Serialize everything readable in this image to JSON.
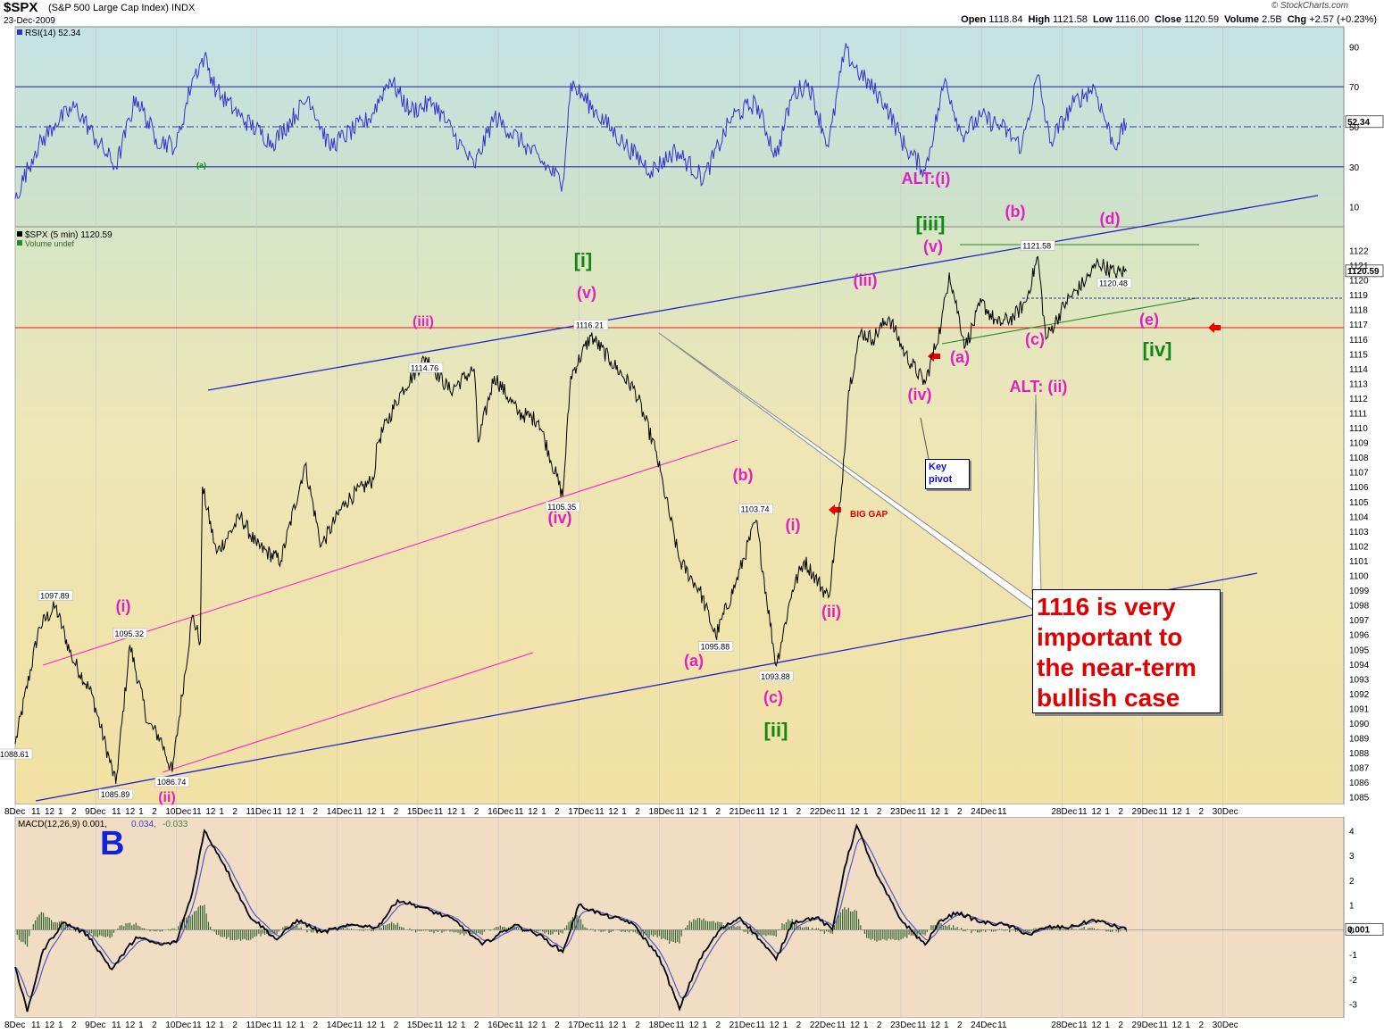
{
  "header": {
    "symbol": "$SPX",
    "name": "(S&P 500 Large Cap Index)",
    "exchange": "INDX",
    "date": "23-Dec-2009",
    "brand": "© StockCharts.com",
    "ohlc": [
      {
        "label": "Open",
        "value": "1118.84"
      },
      {
        "label": "High",
        "value": "1121.58"
      },
      {
        "label": "Low",
        "value": "1116.00"
      },
      {
        "label": "Close",
        "value": "1120.59"
      },
      {
        "label": "Volume",
        "value": "2.5B"
      },
      {
        "label": "Chg",
        "value": "+2.57 (+0.23%)"
      }
    ]
  },
  "rsi_panel": {
    "label": "RSI(14) 52.34",
    "current": "52.34",
    "ticks": [
      90,
      70,
      50,
      30,
      10
    ],
    "marker": "(a)"
  },
  "price_panel": {
    "label": "$SPX (5 min) 1120.59",
    "volume_label": "Volume undef",
    "current": "1120.59",
    "price_range": [
      1084.5,
      1123.6
    ],
    "ticks": [
      1085,
      1086,
      1087,
      1088,
      1089,
      1090,
      1091,
      1092,
      1093,
      1094,
      1095,
      1096,
      1097,
      1098,
      1099,
      1100,
      1101,
      1102,
      1103,
      1104,
      1105,
      1106,
      1107,
      1108,
      1109,
      1110,
      1111,
      1112,
      1113,
      1114,
      1115,
      1116,
      1117,
      1118,
      1119,
      1120,
      1121,
      1122
    ]
  },
  "macd_panel": {
    "label": "MACD(12,26,9) 0.001, 0.034, -0.033",
    "value_a": "MACD(12,26,9) 0.001,",
    "value_b": "0.034,",
    "value_c": "-0.033",
    "current": "0.001",
    "ticks": [
      4,
      3,
      2,
      1,
      0,
      -1,
      -2,
      -3
    ]
  },
  "x_axis": {
    "days": [
      {
        "label": "8Dec",
        "hours": [
          "11",
          "12",
          "1",
          "2"
        ]
      },
      {
        "label": "9Dec",
        "hours": [
          "11",
          "12",
          "1",
          "2"
        ]
      },
      {
        "label": "10Dec",
        "hours": [
          "11",
          "12",
          "1",
          "2"
        ]
      },
      {
        "label": "11Dec",
        "hours": [
          "11",
          "12",
          "1",
          "2"
        ]
      },
      {
        "label": "14Dec",
        "hours": [
          "11",
          "12",
          "1",
          "2"
        ]
      },
      {
        "label": "15Dec",
        "hours": [
          "11",
          "12",
          "1",
          "2"
        ]
      },
      {
        "label": "16Dec",
        "hours": [
          "11",
          "12",
          "1",
          "2"
        ]
      },
      {
        "label": "17Dec",
        "hours": [
          "11",
          "12",
          "1",
          "2"
        ]
      },
      {
        "label": "18Dec",
        "hours": [
          "11",
          "12",
          "1",
          "2"
        ]
      },
      {
        "label": "21Dec",
        "hours": [
          "11",
          "12",
          "1",
          "2"
        ]
      },
      {
        "label": "22Dec",
        "hours": [
          "11",
          "12",
          "1",
          "2"
        ]
      },
      {
        "label": "23Dec",
        "hours": [
          "11",
          "12",
          "1",
          "2"
        ]
      },
      {
        "label": "24Dec",
        "hours": [
          "11"
        ]
      },
      {
        "label": "28Dec",
        "hours": [
          "11",
          "12",
          "1",
          "2"
        ]
      },
      {
        "label": "29Dec",
        "hours": [
          "11",
          "12",
          "1",
          "2"
        ]
      },
      {
        "label": "30Dec",
        "hours": []
      }
    ]
  },
  "colors": {
    "price_line": "#000000",
    "rsi_line": "#3333cc",
    "macd_line": "#000000",
    "signal_line": "#5555cc",
    "histogram": "#336633",
    "trend_blue": "#2222cc",
    "trend_magenta": "#ff22cc",
    "trend_green": "#228822",
    "level_red": "#ee1111",
    "wave_magenta": "#e020c0",
    "wave_green": "#118811"
  },
  "chart_data": {
    "type": "line",
    "title": "$SPX (S&P 500 Large Cap Index) 5 min",
    "price_anchors": [
      {
        "x": 0.0,
        "y": 1088.6
      },
      {
        "x": 0.6,
        "y": 1096.5
      },
      {
        "x": 1.0,
        "y": 1097.9
      },
      {
        "x": 1.4,
        "y": 1094.5
      },
      {
        "x": 1.9,
        "y": 1092.0
      },
      {
        "x": 2.5,
        "y": 1085.9
      },
      {
        "x": 2.85,
        "y": 1095.3
      },
      {
        "x": 3.3,
        "y": 1090.0
      },
      {
        "x": 3.6,
        "y": 1089.0
      },
      {
        "x": 3.9,
        "y": 1086.7
      },
      {
        "x": 4.4,
        "y": 1097.3
      },
      {
        "x": 4.6,
        "y": 1095.5
      },
      {
        "x": 4.65,
        "y": 1106.0
      },
      {
        "x": 5.0,
        "y": 1101.5
      },
      {
        "x": 5.6,
        "y": 1104.0
      },
      {
        "x": 6.0,
        "y": 1102.0
      },
      {
        "x": 6.6,
        "y": 1101.0
      },
      {
        "x": 7.2,
        "y": 1107.5
      },
      {
        "x": 7.6,
        "y": 1102.0
      },
      {
        "x": 8.2,
        "y": 1105.0
      },
      {
        "x": 8.9,
        "y": 1106.5
      },
      {
        "x": 9.0,
        "y": 1109.0
      },
      {
        "x": 9.6,
        "y": 1112.5
      },
      {
        "x": 10.2,
        "y": 1114.76
      },
      {
        "x": 10.8,
        "y": 1112.5
      },
      {
        "x": 11.4,
        "y": 1114.0
      },
      {
        "x": 11.5,
        "y": 1109.0
      },
      {
        "x": 11.9,
        "y": 1113.5
      },
      {
        "x": 12.5,
        "y": 1111.0
      },
      {
        "x": 13.0,
        "y": 1110.5
      },
      {
        "x": 13.6,
        "y": 1105.35
      },
      {
        "x": 13.8,
        "y": 1113.5
      },
      {
        "x": 14.3,
        "y": 1116.21
      },
      {
        "x": 14.8,
        "y": 1114.5
      },
      {
        "x": 15.4,
        "y": 1112.5
      },
      {
        "x": 15.9,
        "y": 1108.5
      },
      {
        "x": 16.1,
        "y": 1106.0
      },
      {
        "x": 16.5,
        "y": 1101.0
      },
      {
        "x": 17.0,
        "y": 1099.0
      },
      {
        "x": 17.4,
        "y": 1095.88
      },
      {
        "x": 17.9,
        "y": 1099.5
      },
      {
        "x": 18.4,
        "y": 1103.74
      },
      {
        "x": 18.9,
        "y": 1093.88
      },
      {
        "x": 19.3,
        "y": 1099.0
      },
      {
        "x": 19.6,
        "y": 1101.0
      },
      {
        "x": 20.2,
        "y": 1098.5
      },
      {
        "x": 20.5,
        "y": 1105.0
      },
      {
        "x": 20.7,
        "y": 1112.5
      },
      {
        "x": 21.0,
        "y": 1116.5
      },
      {
        "x": 21.3,
        "y": 1116.0
      },
      {
        "x": 21.7,
        "y": 1117.5
      },
      {
        "x": 22.1,
        "y": 1115.0
      },
      {
        "x": 22.6,
        "y": 1113.0
      },
      {
        "x": 23.0,
        "y": 1117.0
      },
      {
        "x": 23.2,
        "y": 1120.5
      },
      {
        "x": 23.6,
        "y": 1115.5
      },
      {
        "x": 24.0,
        "y": 1118.5
      },
      {
        "x": 24.4,
        "y": 1117.0
      },
      {
        "x": 24.8,
        "y": 1117.5
      },
      {
        "x": 25.1,
        "y": 1118.5
      },
      {
        "x": 25.4,
        "y": 1121.58
      },
      {
        "x": 25.6,
        "y": 1116.0
      },
      {
        "x": 26.1,
        "y": 1118.5
      },
      {
        "x": 26.6,
        "y": 1120.0
      },
      {
        "x": 26.9,
        "y": 1121.2
      },
      {
        "x": 27.3,
        "y": 1120.48
      },
      {
        "x": 27.6,
        "y": 1120.59
      }
    ],
    "x_range": [
      0,
      33
    ],
    "ylim": [
      1084.5,
      1123.6
    ],
    "price_labels": [
      {
        "x": 0.0,
        "y": 1088.61,
        "text": "1088.61"
      },
      {
        "x": 1.0,
        "y": 1097.89,
        "text": "1097.89"
      },
      {
        "x": 2.5,
        "y": 1085.89,
        "text": "1085.89"
      },
      {
        "x": 2.85,
        "y": 1095.32,
        "text": "1095.32"
      },
      {
        "x": 3.9,
        "y": 1086.74,
        "text": "1086.74"
      },
      {
        "x": 10.2,
        "y": 1114.76,
        "text": "1114.76"
      },
      {
        "x": 13.6,
        "y": 1105.35,
        "text": "1105.35"
      },
      {
        "x": 14.3,
        "y": 1116.21,
        "text": "1116.21"
      },
      {
        "x": 17.4,
        "y": 1095.88,
        "text": "1095.88"
      },
      {
        "x": 18.4,
        "y": 1103.74,
        "text": "1103.74"
      },
      {
        "x": 18.9,
        "y": 1093.88,
        "text": "1093.88"
      },
      {
        "x": 25.4,
        "y": 1121.58,
        "text": "1121.58"
      },
      {
        "x": 27.3,
        "y": 1120.48,
        "text": "1120.48"
      }
    ],
    "rsi_anchors": [
      {
        "x": 0,
        "y": 14
      },
      {
        "x": 0.5,
        "y": 38
      },
      {
        "x": 1.0,
        "y": 52
      },
      {
        "x": 1.5,
        "y": 60
      },
      {
        "x": 2.0,
        "y": 44
      },
      {
        "x": 2.5,
        "y": 30
      },
      {
        "x": 3.0,
        "y": 65
      },
      {
        "x": 3.5,
        "y": 44
      },
      {
        "x": 4.0,
        "y": 40
      },
      {
        "x": 4.4,
        "y": 74
      },
      {
        "x": 4.7,
        "y": 85
      },
      {
        "x": 5.0,
        "y": 68
      },
      {
        "x": 5.6,
        "y": 55
      },
      {
        "x": 6.4,
        "y": 42
      },
      {
        "x": 7.3,
        "y": 65
      },
      {
        "x": 7.8,
        "y": 40
      },
      {
        "x": 8.8,
        "y": 54
      },
      {
        "x": 9.3,
        "y": 74
      },
      {
        "x": 9.8,
        "y": 58
      },
      {
        "x": 10.4,
        "y": 62
      },
      {
        "x": 11.4,
        "y": 30
      },
      {
        "x": 11.9,
        "y": 55
      },
      {
        "x": 12.6,
        "y": 42
      },
      {
        "x": 13.6,
        "y": 22
      },
      {
        "x": 13.8,
        "y": 72
      },
      {
        "x": 14.4,
        "y": 58
      },
      {
        "x": 15.1,
        "y": 42
      },
      {
        "x": 15.8,
        "y": 28
      },
      {
        "x": 16.4,
        "y": 38
      },
      {
        "x": 17.1,
        "y": 24
      },
      {
        "x": 17.8,
        "y": 55
      },
      {
        "x": 18.4,
        "y": 62
      },
      {
        "x": 18.9,
        "y": 35
      },
      {
        "x": 19.3,
        "y": 66
      },
      {
        "x": 19.7,
        "y": 72
      },
      {
        "x": 20.2,
        "y": 40
      },
      {
        "x": 20.6,
        "y": 88
      },
      {
        "x": 21.0,
        "y": 76
      },
      {
        "x": 21.6,
        "y": 62
      },
      {
        "x": 22.1,
        "y": 40
      },
      {
        "x": 22.6,
        "y": 28
      },
      {
        "x": 23.1,
        "y": 74
      },
      {
        "x": 23.5,
        "y": 46
      },
      {
        "x": 24.0,
        "y": 55
      },
      {
        "x": 24.5,
        "y": 50
      },
      {
        "x": 25.0,
        "y": 40
      },
      {
        "x": 25.4,
        "y": 76
      },
      {
        "x": 25.7,
        "y": 42
      },
      {
        "x": 26.3,
        "y": 62
      },
      {
        "x": 26.8,
        "y": 70
      },
      {
        "x": 27.3,
        "y": 40
      },
      {
        "x": 27.6,
        "y": 52
      }
    ],
    "macd_anchors": [
      {
        "x": 0,
        "y": -1.5
      },
      {
        "x": 0.3,
        "y": -3.3
      },
      {
        "x": 0.7,
        "y": -0.8
      },
      {
        "x": 1.2,
        "y": 0.3
      },
      {
        "x": 1.8,
        "y": -0.2
      },
      {
        "x": 2.4,
        "y": -1.6
      },
      {
        "x": 3.0,
        "y": -0.3
      },
      {
        "x": 3.6,
        "y": -0.6
      },
      {
        "x": 4.0,
        "y": -0.5
      },
      {
        "x": 4.4,
        "y": 1.5
      },
      {
        "x": 4.7,
        "y": 4.0
      },
      {
        "x": 5.2,
        "y": 2.6
      },
      {
        "x": 5.8,
        "y": 0.6
      },
      {
        "x": 6.5,
        "y": -0.4
      },
      {
        "x": 7.0,
        "y": 0.4
      },
      {
        "x": 7.6,
        "y": -0.1
      },
      {
        "x": 8.4,
        "y": 0.2
      },
      {
        "x": 9.0,
        "y": 0.1
      },
      {
        "x": 9.5,
        "y": 1.2
      },
      {
        "x": 10.1,
        "y": 0.9
      },
      {
        "x": 10.9,
        "y": 0.4
      },
      {
        "x": 11.6,
        "y": -0.6
      },
      {
        "x": 12.4,
        "y": 0.2
      },
      {
        "x": 13.0,
        "y": -0.2
      },
      {
        "x": 13.6,
        "y": -0.9
      },
      {
        "x": 14.0,
        "y": 1.0
      },
      {
        "x": 14.6,
        "y": 0.6
      },
      {
        "x": 15.3,
        "y": 0.3
      },
      {
        "x": 16.0,
        "y": -1.1
      },
      {
        "x": 16.5,
        "y": -3.2
      },
      {
        "x": 17.0,
        "y": -1.2
      },
      {
        "x": 17.5,
        "y": 0.0
      },
      {
        "x": 18.0,
        "y": 0.5
      },
      {
        "x": 18.5,
        "y": -0.4
      },
      {
        "x": 18.9,
        "y": -1.2
      },
      {
        "x": 19.3,
        "y": 0.3
      },
      {
        "x": 19.9,
        "y": 0.5
      },
      {
        "x": 20.3,
        "y": 0.0
      },
      {
        "x": 20.6,
        "y": 2.5
      },
      {
        "x": 20.9,
        "y": 4.2
      },
      {
        "x": 21.4,
        "y": 2.2
      },
      {
        "x": 22.0,
        "y": 0.4
      },
      {
        "x": 22.6,
        "y": -0.6
      },
      {
        "x": 23.0,
        "y": 0.4
      },
      {
        "x": 23.4,
        "y": 0.7
      },
      {
        "x": 24.0,
        "y": 0.3
      },
      {
        "x": 24.6,
        "y": 0.2
      },
      {
        "x": 25.2,
        "y": -0.2
      },
      {
        "x": 25.6,
        "y": 0.1
      },
      {
        "x": 26.2,
        "y": 0.1
      },
      {
        "x": 26.8,
        "y": 0.4
      },
      {
        "x": 27.6,
        "y": 0.0
      }
    ]
  },
  "annotations": {
    "waves": [
      {
        "text": "(i)",
        "x": 138,
        "y": 685,
        "color": "magenta",
        "size": 18
      },
      {
        "text": "(ii)",
        "x": 187,
        "y": 898,
        "color": "magenta",
        "size": 16
      },
      {
        "text": "(iii)",
        "x": 474,
        "y": 365,
        "color": "magenta",
        "size": 16
      },
      {
        "text": "(iv)",
        "x": 627,
        "y": 586,
        "color": "magenta",
        "size": 18
      },
      {
        "text": "(v)",
        "x": 657,
        "y": 334,
        "color": "magenta",
        "size": 18
      },
      {
        "text": "[i]",
        "x": 653,
        "y": 299,
        "color": "green",
        "size": 22
      },
      {
        "text": "(a)",
        "x": 777,
        "y": 746,
        "color": "magenta",
        "size": 18
      },
      {
        "text": "(b)",
        "x": 832,
        "y": 538,
        "color": "magenta",
        "size": 18
      },
      {
        "text": "(c)",
        "x": 866,
        "y": 787,
        "color": "magenta",
        "size": 18
      },
      {
        "text": "[ii]",
        "x": 869,
        "y": 825,
        "color": "green",
        "size": 22
      },
      {
        "text": "(i)",
        "x": 888,
        "y": 594,
        "color": "magenta",
        "size": 18
      },
      {
        "text": "(ii)",
        "x": 931,
        "y": 691,
        "color": "magenta",
        "size": 18
      },
      {
        "text": "(iii)",
        "x": 969,
        "y": 320,
        "color": "magenta",
        "size": 18
      },
      {
        "text": "(iv)",
        "x": 1030,
        "y": 448,
        "color": "magenta",
        "size": 18
      },
      {
        "text": "(v)",
        "x": 1045,
        "y": 282,
        "color": "magenta",
        "size": 18
      },
      {
        "text": "[iii]",
        "x": 1042,
        "y": 258,
        "color": "green",
        "size": 22
      },
      {
        "text": "(a)",
        "x": 1075,
        "y": 406,
        "color": "magenta",
        "size": 18
      },
      {
        "text": "(b)",
        "x": 1137,
        "y": 243,
        "color": "magenta",
        "size": 18
      },
      {
        "text": "(c)",
        "x": 1159,
        "y": 386,
        "color": "magenta",
        "size": 18
      },
      {
        "text": "(d)",
        "x": 1243,
        "y": 251,
        "color": "magenta",
        "size": 18
      },
      {
        "text": "(e)",
        "x": 1287,
        "y": 364,
        "color": "magenta",
        "size": 18
      },
      {
        "text": "[iv]",
        "x": 1296,
        "y": 399,
        "color": "green",
        "size": 22
      },
      {
        "text": "ALT:(i)",
        "x": 1037,
        "y": 206,
        "color": "magenta",
        "size": 18
      },
      {
        "text": "ALT: (ii)",
        "x": 1163,
        "y": 439,
        "color": "magenta",
        "size": 18
      }
    ],
    "big_gap": "BIG GAP",
    "key_pivot": [
      "Key",
      "pivot"
    ],
    "big_letter": "B",
    "note_lines": [
      "1116 is very",
      "important to",
      "the near-term",
      "bullish case"
    ]
  }
}
